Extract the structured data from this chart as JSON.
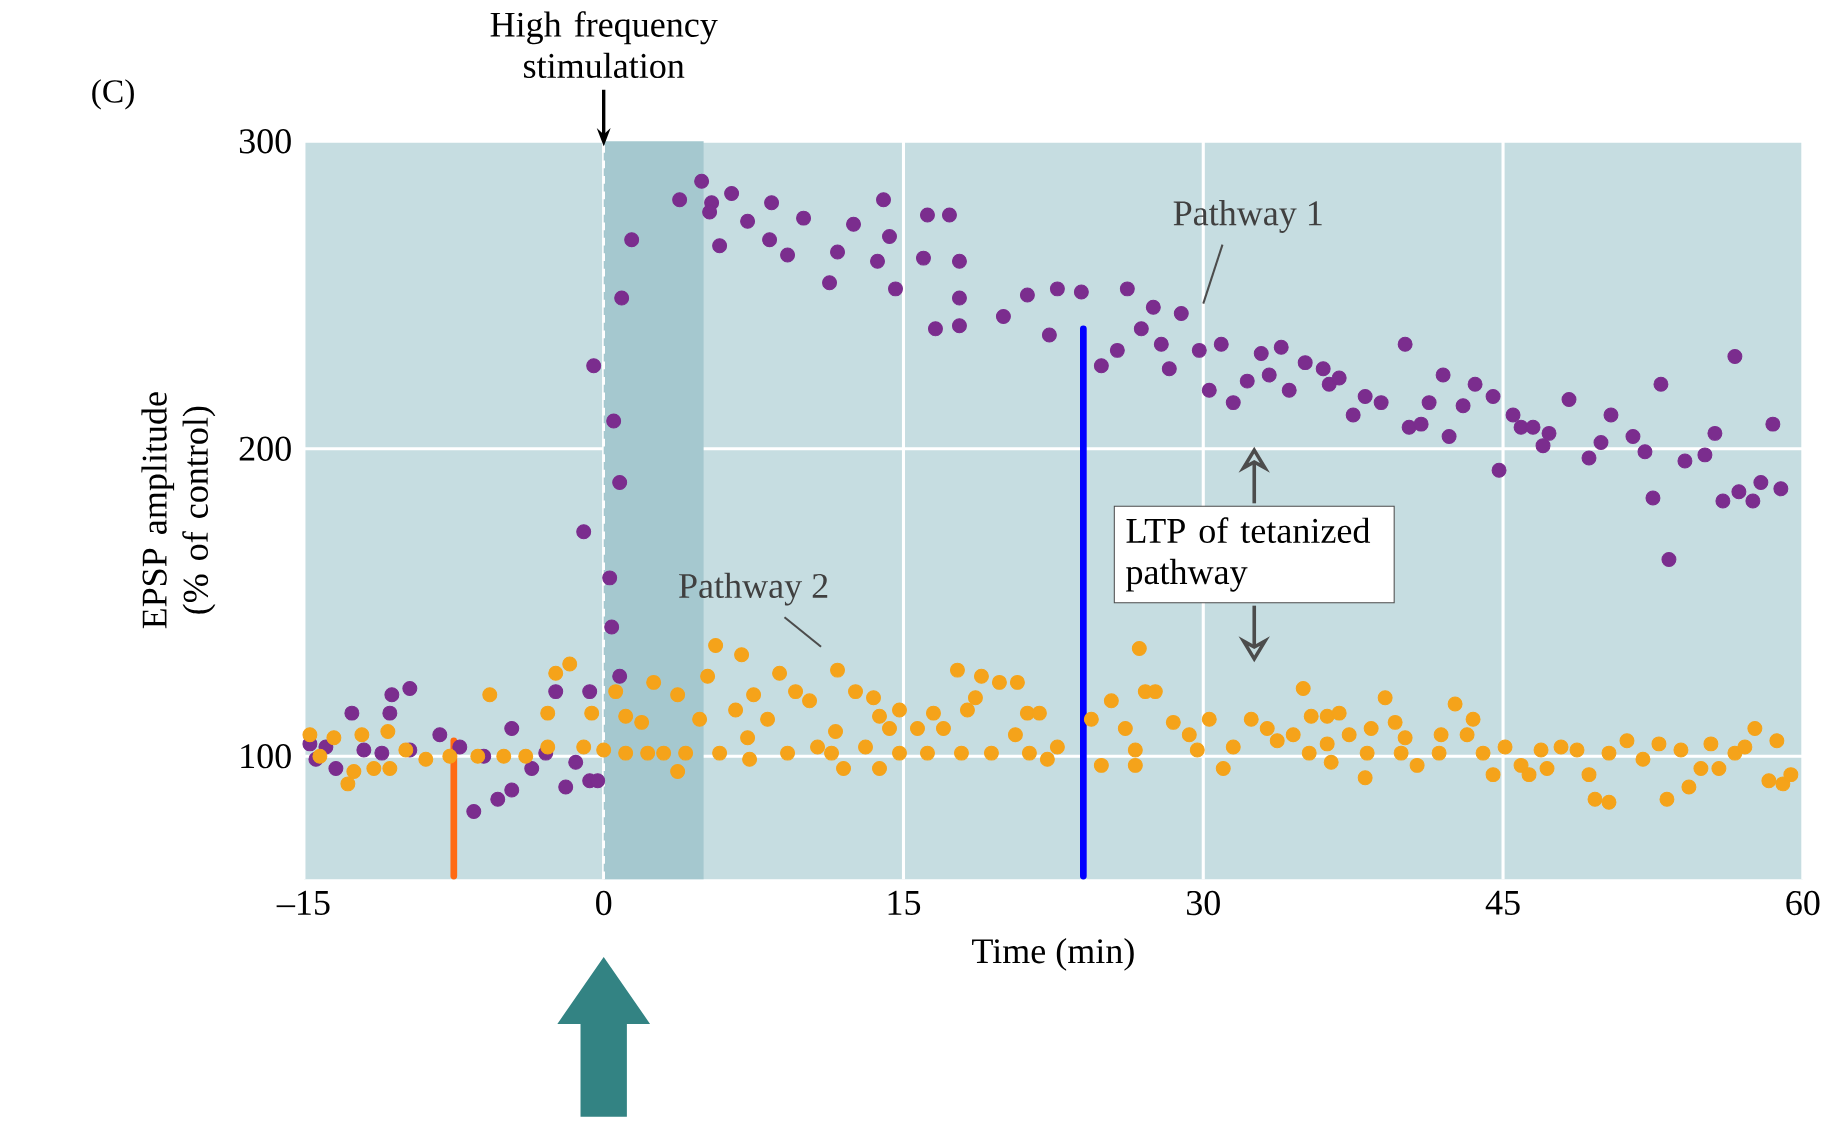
{
  "chart_data": {
    "type": "scatter",
    "xlabel": "Time (min)",
    "ylabel": "EPSP amplitude (% of control)",
    "marker": "circle",
    "grid": true,
    "xlim": [
      -15,
      60
    ],
    "xticks": [
      {
        "value": -15,
        "label": "–15"
      },
      0,
      15,
      30,
      45,
      60
    ],
    "ylim": [
      60,
      300
    ],
    "yticks": [
      100,
      200,
      300
    ],
    "bands": [
      {
        "axis": "x",
        "from": 0,
        "to": 5,
        "color": "#a5c8cf"
      }
    ],
    "ref_lines": [
      {
        "axis": "x",
        "value": 0,
        "label": "High frequency stimulation",
        "color": "#ffffff",
        "line_style": "dashed"
      }
    ],
    "annotations": [
      "(C)",
      "LTP of tetanized pathway"
    ],
    "series": [
      {
        "name": "Pathway 1",
        "color": "#7b2d8e",
        "x": [
          -14.7,
          -14.4,
          -13.9,
          -13.4,
          -12.6,
          -12,
          -11.1,
          -10.7,
          -10.6,
          -9.7,
          -9.7,
          -8.2,
          -7.2,
          -6.5,
          -5.3,
          -4.6,
          -4.6,
          -6,
          -3.6,
          -2.9,
          -2.4,
          -1.9,
          -1.4,
          -0.7,
          -0.7,
          -0.3,
          -1.0,
          -0.5,
          0.5,
          0.8,
          0.3,
          0.4,
          0.8,
          0.9,
          1.4,
          3.8,
          4.9,
          5.4,
          5.3,
          6.4,
          5.8,
          7.2,
          8.3,
          8.4,
          9.2,
          10,
          11.3,
          11.7,
          12.5,
          13.7,
          14,
          14.3,
          14.6,
          16,
          16.2,
          16.6,
          17.3,
          17.8,
          17.8,
          17.8,
          20,
          21.2,
          22.3,
          22.7,
          23.9,
          24.9,
          25.7,
          26.2,
          26.9,
          27.5,
          27.9,
          28.3,
          28.9,
          29.8,
          30.3,
          30.9,
          31.5,
          32.2,
          32.9,
          33.3,
          33.9,
          34.3,
          35.1,
          36,
          36.3,
          36.8,
          37.5,
          38.1,
          38.9,
          40.1,
          40.3,
          40.9,
          41.3,
          42,
          42.3,
          43,
          43.6,
          44.5,
          44.8,
          45.5,
          45.9,
          46.5,
          47,
          47.3,
          48.3,
          49.3,
          49.9,
          50.4,
          51.5,
          52.1,
          52.9,
          52.5,
          53.3,
          54.1,
          55.1,
          55.6,
          56.6,
          56,
          56.8,
          57.5,
          57.9,
          58.5,
          58.9
        ],
        "values": [
          104,
          99,
          103,
          96,
          114,
          102,
          101,
          114,
          120,
          122,
          102,
          107,
          103,
          82,
          86,
          89,
          109,
          100,
          96,
          101,
          121,
          90,
          98,
          121,
          92,
          92,
          173,
          227,
          209,
          189,
          158,
          142,
          126,
          249,
          268,
          281,
          287,
          280,
          277,
          283,
          266,
          274,
          268,
          280,
          263,
          275,
          254,
          264,
          273,
          261,
          281,
          269,
          252,
          262,
          276,
          239,
          276,
          261,
          249,
          240,
          243,
          250,
          237,
          252,
          251,
          227,
          232,
          252,
          239,
          246,
          234,
          226,
          244,
          232,
          219,
          234,
          215,
          222,
          231,
          224,
          233,
          219,
          228,
          226,
          221,
          223,
          211,
          217,
          215,
          234,
          207,
          208,
          215,
          224,
          204,
          214,
          221,
          217,
          193,
          211,
          207,
          207,
          201,
          205,
          216,
          197,
          202,
          211,
          204,
          199,
          221,
          184,
          164,
          196,
          198,
          205,
          230,
          183,
          186,
          183,
          189,
          208,
          187
        ]
      },
      {
        "name": "Pathway 2",
        "color": "#f5a31a",
        "x": [
          -14.7,
          -14.2,
          -13.5,
          -12.8,
          -12.5,
          -12.1,
          -11.5,
          -10.8,
          -10.7,
          -9.9,
          -8.9,
          -7.7,
          -6.3,
          -5.7,
          -5,
          -3.9,
          -2.8,
          -2.8,
          -2.4,
          -1.7,
          -1,
          -0.6,
          0,
          0.6,
          1.1,
          1.1,
          1.9,
          2.2,
          2.5,
          3,
          3.7,
          3.7,
          4.1,
          4.8,
          5.2,
          5.6,
          5.8,
          6.6,
          6.9,
          7.2,
          7.3,
          7.5,
          8.2,
          8.8,
          9.2,
          9.6,
          10.3,
          10.7,
          11.4,
          11.6,
          11.7,
          12,
          12.6,
          13.1,
          13.5,
          13.8,
          13.8,
          14.3,
          14.8,
          14.8,
          15.7,
          16.2,
          16.5,
          17,
          17.7,
          17.9,
          18.2,
          18.6,
          18.9,
          19.4,
          19.8,
          20.7,
          20.6,
          21.2,
          21.3,
          21.8,
          22.2,
          26.8,
          27.1,
          27.6,
          22.7,
          24.4,
          24.9,
          25.4,
          26.1,
          26.6,
          26.6,
          28.5,
          29.3,
          29.7,
          30.3,
          31,
          31.5,
          32.4,
          33.2,
          33.7,
          34.5,
          35,
          35.3,
          35.4,
          36.2,
          36.8,
          36.2,
          36.4,
          37.3,
          38.1,
          38.2,
          38.4,
          39.1,
          39.6,
          40.1,
          39.9,
          40.7,
          41.9,
          41.8,
          42.6,
          43.2,
          43.5,
          44,
          44.5,
          45.1,
          45.9,
          46.3,
          46.9,
          47.2,
          47.9,
          48.7,
          49.3,
          49.6,
          50.3,
          50.3,
          51.2,
          52,
          52.8,
          53.2,
          53.9,
          54.3,
          54.9,
          55.4,
          55.8,
          56.6,
          57.1,
          57.6,
          58.3,
          58.7,
          59,
          59.4
        ],
        "values": [
          107,
          100,
          106,
          91,
          95,
          107,
          96,
          108,
          96,
          102,
          99,
          100,
          100,
          120,
          100,
          100,
          103,
          114,
          127,
          130,
          103,
          114,
          102,
          121,
          113,
          101,
          111,
          101,
          124,
          101,
          120,
          95,
          101,
          112,
          126,
          136,
          101,
          115,
          133,
          106,
          99,
          120,
          112,
          127,
          101,
          121,
          118,
          103,
          101,
          108,
          128,
          96,
          121,
          103,
          119,
          113,
          96,
          109,
          115,
          101,
          109,
          101,
          114,
          109,
          128,
          101,
          115,
          119,
          126,
          101,
          124,
          124,
          107,
          114,
          101,
          114,
          99,
          135,
          121,
          121,
          103,
          112,
          97,
          118,
          109,
          97,
          102,
          111,
          107,
          102,
          112,
          96,
          103,
          112,
          109,
          105,
          107,
          122,
          101,
          113,
          113,
          114,
          104,
          98,
          107,
          93,
          101,
          109,
          119,
          111,
          106,
          101,
          97,
          107,
          101,
          117,
          107,
          112,
          101,
          94,
          103,
          97,
          94,
          102,
          96,
          103,
          102,
          94,
          86,
          85,
          101,
          105,
          99,
          104,
          86,
          102,
          90,
          96,
          104,
          96,
          101,
          103,
          109,
          92,
          105,
          91,
          94
        ]
      },
      {
        "type": "line",
        "marker": "none",
        "color": "#0000ff",
        "x": [
          24,
          24
        ],
        "values": [
          61,
          239
        ]
      },
      {
        "type": "line",
        "marker": "none",
        "color": "#ff6a13",
        "x": [
          -7.5,
          -7.5
        ],
        "values": [
          61,
          105
        ]
      }
    ]
  }
}
